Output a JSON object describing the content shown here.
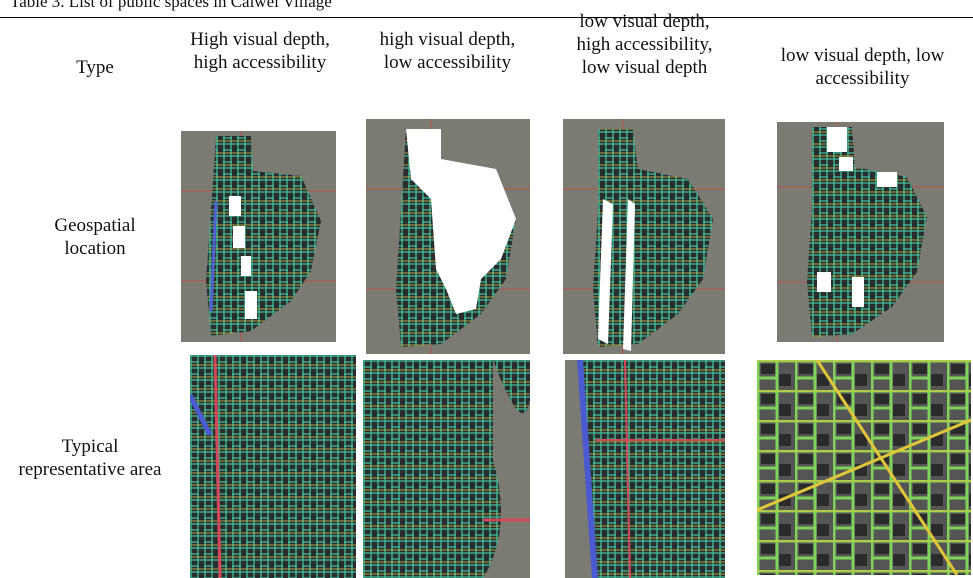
{
  "caption": "Table 3. List of public spaces in Caiwei Village",
  "table": {
    "header": [
      "Type",
      "High visual depth, high accessibility",
      "high visual depth, low accessibility",
      "low visual depth, high accessibility, low visual depth",
      "low visual depth, low accessibility"
    ],
    "rows": [
      [
        "Geospatial location"
      ],
      [
        "Typical representative area"
      ]
    ]
  }
}
